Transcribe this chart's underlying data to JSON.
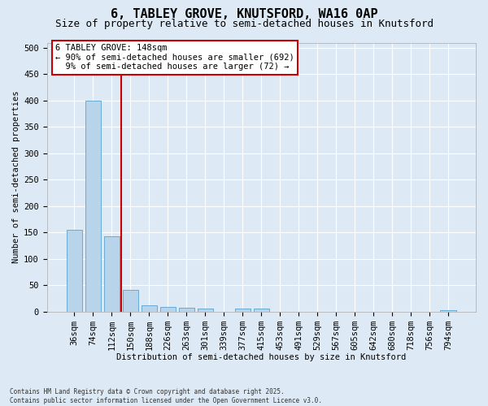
{
  "title1": "6, TABLEY GROVE, KNUTSFORD, WA16 0AP",
  "title2": "Size of property relative to semi-detached houses in Knutsford",
  "xlabel": "Distribution of semi-detached houses by size in Knutsford",
  "ylabel": "Number of semi-detached properties",
  "categories": [
    "36sqm",
    "74sqm",
    "112sqm",
    "150sqm",
    "188sqm",
    "226sqm",
    "263sqm",
    "301sqm",
    "339sqm",
    "377sqm",
    "415sqm",
    "453sqm",
    "491sqm",
    "529sqm",
    "567sqm",
    "605sqm",
    "642sqm",
    "680sqm",
    "718sqm",
    "756sqm",
    "794sqm"
  ],
  "values": [
    155,
    400,
    143,
    41,
    11,
    9,
    7,
    5,
    0,
    6,
    6,
    0,
    0,
    0,
    0,
    0,
    0,
    0,
    0,
    0,
    3
  ],
  "bar_color": "#b8d4ea",
  "bar_edge_color": "#6aaad4",
  "vline_color": "#cc0000",
  "annotation_text": "6 TABLEY GROVE: 148sqm\n← 90% of semi-detached houses are smaller (692)\n  9% of semi-detached houses are larger (72) →",
  "annotation_box_color": "#ffffff",
  "annotation_box_edge": "#cc0000",
  "ylim": [
    0,
    510
  ],
  "yticks": [
    0,
    50,
    100,
    150,
    200,
    250,
    300,
    350,
    400,
    450,
    500
  ],
  "footer": "Contains HM Land Registry data © Crown copyright and database right 2025.\nContains public sector information licensed under the Open Government Licence v3.0.",
  "bg_color": "#ddeaf5",
  "plot_bg_color": "#ddeaf5",
  "grid_color": "#ffffff",
  "title1_fontsize": 11,
  "title2_fontsize": 9,
  "annotation_fontsize": 7.5,
  "axis_fontsize": 7.5,
  "tick_fontsize": 7.5
}
